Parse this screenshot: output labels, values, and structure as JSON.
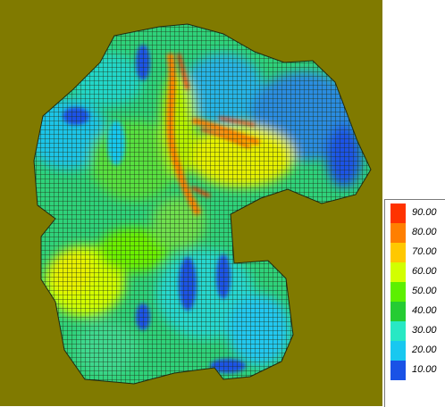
{
  "colors": {
    "background": "#807a00",
    "grid_line": "#1f2a12"
  },
  "legend": {
    "entries": [
      {
        "label": "90.00",
        "color": "#ff3300"
      },
      {
        "label": "80.00",
        "color": "#ff7f00"
      },
      {
        "label": "70.00",
        "color": "#ffc800"
      },
      {
        "label": "60.00",
        "color": "#d2ff00"
      },
      {
        "label": "50.00",
        "color": "#5cf000"
      },
      {
        "label": "40.00",
        "color": "#25cc33"
      },
      {
        "label": "30.00",
        "color": "#28e8c4"
      },
      {
        "label": "20.00",
        "color": "#18c8f0"
      },
      {
        "label": "10.00",
        "color": "#1a52e6"
      }
    ]
  }
}
